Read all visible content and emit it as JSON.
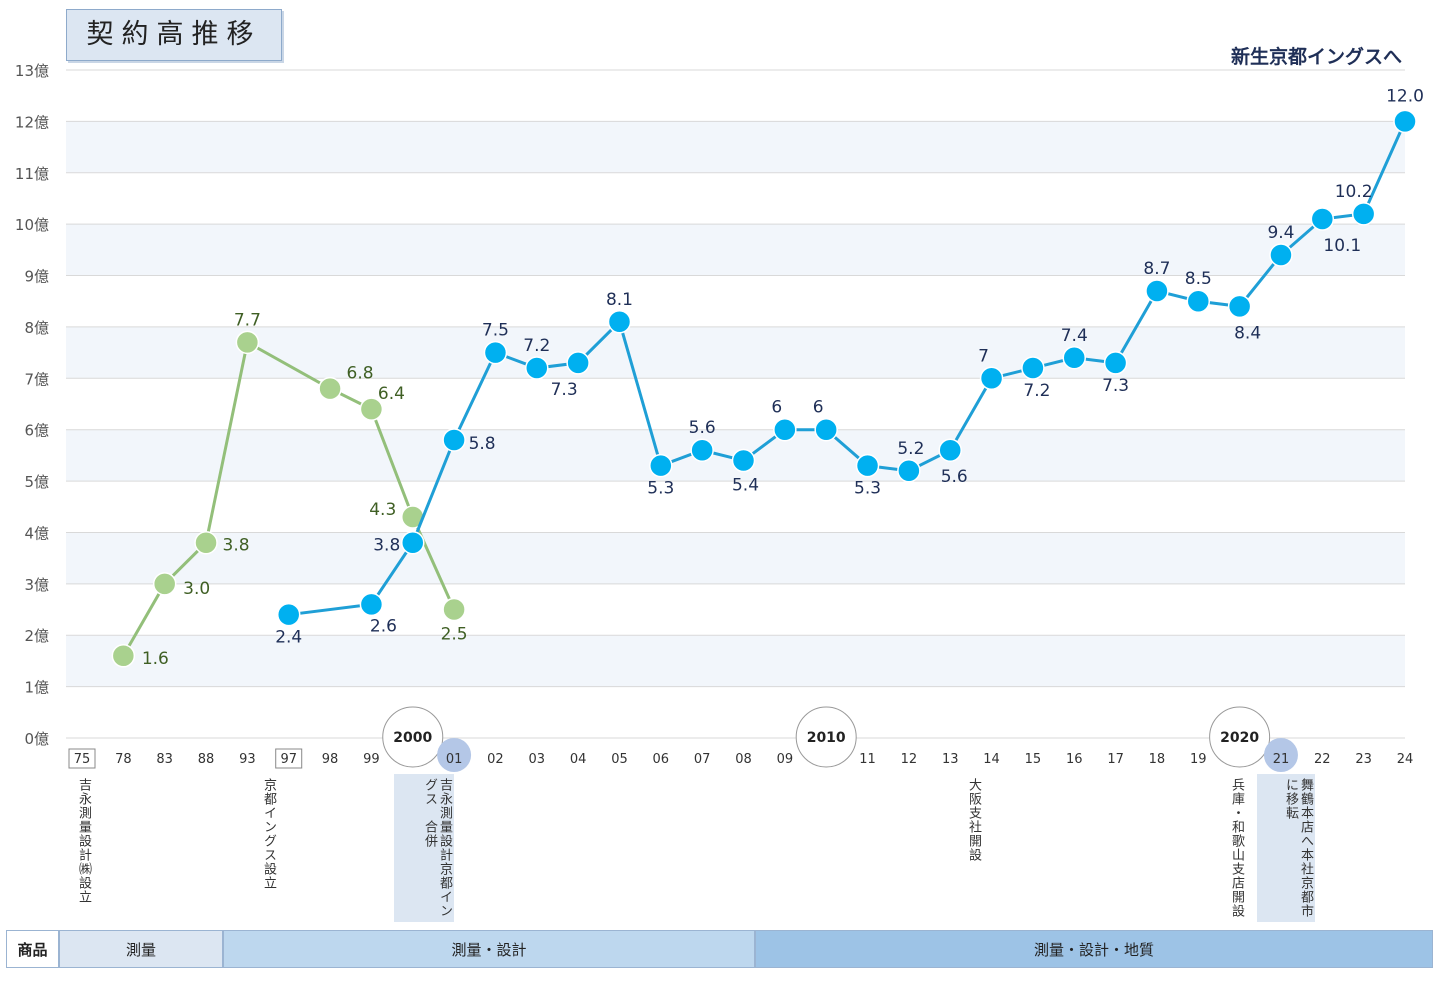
{
  "chart_data": {
    "type": "line",
    "title": "契約高推移",
    "annotation_top_right": "新生京都イングスへ",
    "ylim": [
      0,
      13
    ],
    "y_ticks": [
      "0億",
      "1億",
      "2億",
      "3億",
      "4億",
      "5億",
      "6億",
      "7億",
      "8億",
      "9億",
      "10億",
      "11億",
      "12億",
      "13億"
    ],
    "x_ticks": [
      "75",
      "78",
      "83",
      "88",
      "93",
      "97",
      "98",
      "99",
      "2000",
      "01",
      "02",
      "03",
      "04",
      "05",
      "06",
      "07",
      "08",
      "09",
      "2010",
      "11",
      "12",
      "13",
      "14",
      "15",
      "16",
      "17",
      "18",
      "19",
      "2020",
      "21",
      "22",
      "23",
      "24"
    ],
    "boxed_ticks": [
      "75",
      "97"
    ],
    "circled_ticks": [
      "2000",
      "2010",
      "2020"
    ],
    "highlighted_ticks": [
      "01",
      "21"
    ],
    "series": [
      {
        "color": "#a9d18e",
        "line_color": "#93bf7a",
        "label_color": "#3f5f24",
        "x": [
          "78",
          "83",
          "88",
          "93",
          "98",
          "99",
          "2000",
          "01"
        ],
        "values": [
          1.6,
          3.0,
          3.8,
          7.7,
          6.8,
          6.4,
          4.3,
          2.5
        ],
        "labels": [
          "1.6",
          "3.0",
          "3.8",
          "7.7",
          "6.8",
          "6.4",
          "4.3",
          "2.5"
        ]
      },
      {
        "color": "#00b0f0",
        "line_color": "#1f9fd6",
        "label_color": "#1f2f57",
        "x": [
          "97",
          "99",
          "2000",
          "01",
          "02",
          "03",
          "04",
          "05",
          "06",
          "07",
          "08",
          "09",
          "2010",
          "11",
          "12",
          "13",
          "14",
          "15",
          "16",
          "17",
          "18",
          "19",
          "2020",
          "21",
          "22",
          "23",
          "24"
        ],
        "values": [
          2.4,
          2.6,
          3.8,
          5.8,
          7.5,
          7.2,
          7.3,
          8.1,
          5.3,
          5.6,
          5.4,
          6.0,
          6.0,
          5.3,
          5.2,
          5.6,
          7.0,
          7.2,
          7.4,
          7.3,
          8.7,
          8.5,
          8.4,
          9.4,
          10.1,
          10.2,
          12.0
        ],
        "labels": [
          "2.4",
          "2.6",
          "3.8",
          "5.8",
          "7.5",
          "7.2",
          "7.3",
          "8.1",
          "5.3",
          "5.6",
          "5.4",
          "6",
          "6",
          "5.3",
          "5.2",
          "5.6",
          "7",
          "7.2",
          "7.4",
          "7.3",
          "8.7",
          "8.5",
          "8.4",
          "9.4",
          "10.1",
          "10.2",
          "12.0"
        ]
      }
    ],
    "events": [
      {
        "x": "75",
        "text": "吉永測量設計㈱設立",
        "highlight": false
      },
      {
        "x": "97",
        "text": "京都イングス設立",
        "highlight": false
      },
      {
        "x": "01",
        "text": "吉永測量設計京都イングス　合併",
        "highlight": true
      },
      {
        "x": "14",
        "text": "大阪支社開設",
        "highlight": false
      },
      {
        "x": "2020",
        "text": "兵庫・和歌山支店開設",
        "highlight": false
      },
      {
        "x": "21",
        "text": "舞鶴本店へ本社京都市に移転",
        "highlight": true
      }
    ],
    "product_row": {
      "label": "商品",
      "segments": [
        {
          "text": "測量",
          "color": "#dce6f2"
        },
        {
          "text": "測量・設計",
          "color": "#bdd7ee"
        },
        {
          "text": "測量・設計・地質",
          "color": "#9dc3e6"
        }
      ]
    }
  }
}
